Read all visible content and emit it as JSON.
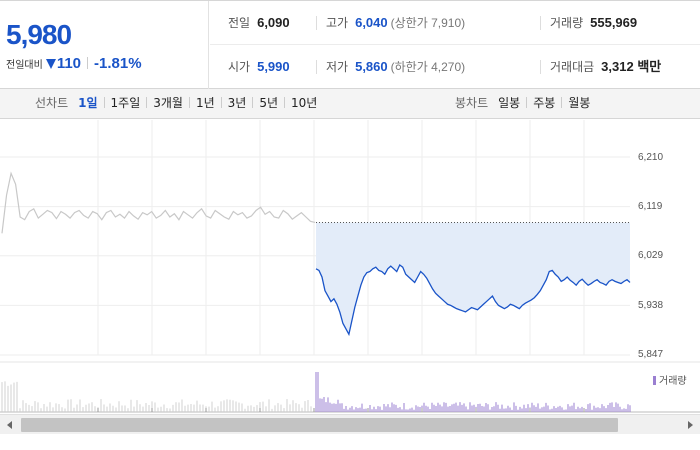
{
  "quote": {
    "current_price": "5,980",
    "change_label": "전일대비",
    "change_value": "110",
    "change_pct": "-1.81%",
    "prev_close_label": "전일",
    "prev_close": "6,090",
    "high_label": "고가",
    "high": "6,040",
    "upper_limit": "(상한가 7,910)",
    "volume_label": "거래량",
    "volume": "555,969",
    "open_label": "시가",
    "open": "5,990",
    "low_label": "저가",
    "low": "5,860",
    "lower_limit": "(하한가 4,270)",
    "amount_label": "거래대금",
    "amount": "3,312 백만"
  },
  "tabs": {
    "line_label": "선차트",
    "line_items": [
      "1일",
      "1주일",
      "3개월",
      "1년",
      "3년",
      "5년",
      "10년"
    ],
    "line_active": 0,
    "candle_label": "봉차트",
    "candle_items": [
      "일봉",
      "주봉",
      "월봉"
    ]
  },
  "colors": {
    "accent": "#1a54c8",
    "prev_day_line": "#c8c8c8",
    "area_fill": "#e3ecf9",
    "volume_bar": "#9a7fd1",
    "reference_line": "#555555"
  },
  "chart_data": {
    "type": "line",
    "ylim": [
      5847,
      6210
    ],
    "y_ticks": [
      "6,210",
      "6,119",
      "6,029",
      "5,938",
      "5,847"
    ],
    "reference_price": 6090,
    "series": [
      {
        "values": [
          6070,
          6140,
          6180,
          6160,
          6100,
          6095,
          6110,
          6115,
          6098,
          6105,
          6112,
          6108,
          6097,
          6110,
          6105,
          6098,
          6108,
          6112,
          6103,
          6098,
          6110,
          6106,
          6095,
          6108,
          6112,
          6100,
          6105,
          6098,
          6110,
          6102,
          6096,
          6108,
          6104,
          6110,
          6098,
          6103,
          6112,
          6100,
          6106,
          6095,
          6110,
          6104,
          6098,
          6108,
          6115,
          6102,
          6098,
          6112,
          6106,
          6100,
          6096,
          6110,
          6104,
          6108,
          6098,
          6102,
          6112,
          6118,
          6105,
          6110,
          6100,
          6098,
          6112,
          6106,
          6096,
          6102,
          6108,
          6100,
          6092,
          6090
        ]
      },
      {
        "values": [
          6005,
          6002,
          5990,
          5965,
          5955,
          5945,
          5950,
          5940,
          5925,
          5905,
          5895,
          5885,
          5910,
          5935,
          5955,
          5975,
          5990,
          5998,
          6000,
          6005,
          6008,
          6002,
          6000,
          5995,
          6005,
          6010,
          6005,
          6000,
          6012,
          6008,
          5995,
          5990,
          5985,
          5980,
          5990,
          6000,
          5995,
          5988,
          5978,
          5968,
          5960,
          5955,
          5950,
          5945,
          5940,
          5938,
          5935,
          5932,
          5930,
          5928,
          5926,
          5930,
          5934,
          5932,
          5930,
          5935,
          5940,
          5945,
          5950,
          5955,
          5945,
          5938,
          5935,
          5932,
          5935,
          5940,
          5938,
          5935,
          5932,
          5938,
          5942,
          5945,
          5948,
          5952,
          5958,
          5965,
          5975,
          5985,
          6000,
          6002,
          5995,
          5990,
          5982,
          5985,
          5990,
          5984,
          5980,
          5975,
          5982,
          5986,
          5980,
          5975,
          5978,
          5982,
          5985,
          5980,
          5978,
          5975,
          5982,
          5985,
          5982,
          5980,
          5978,
          5982,
          5985,
          5980
        ]
      }
    ],
    "volume_legend": "거래량"
  }
}
